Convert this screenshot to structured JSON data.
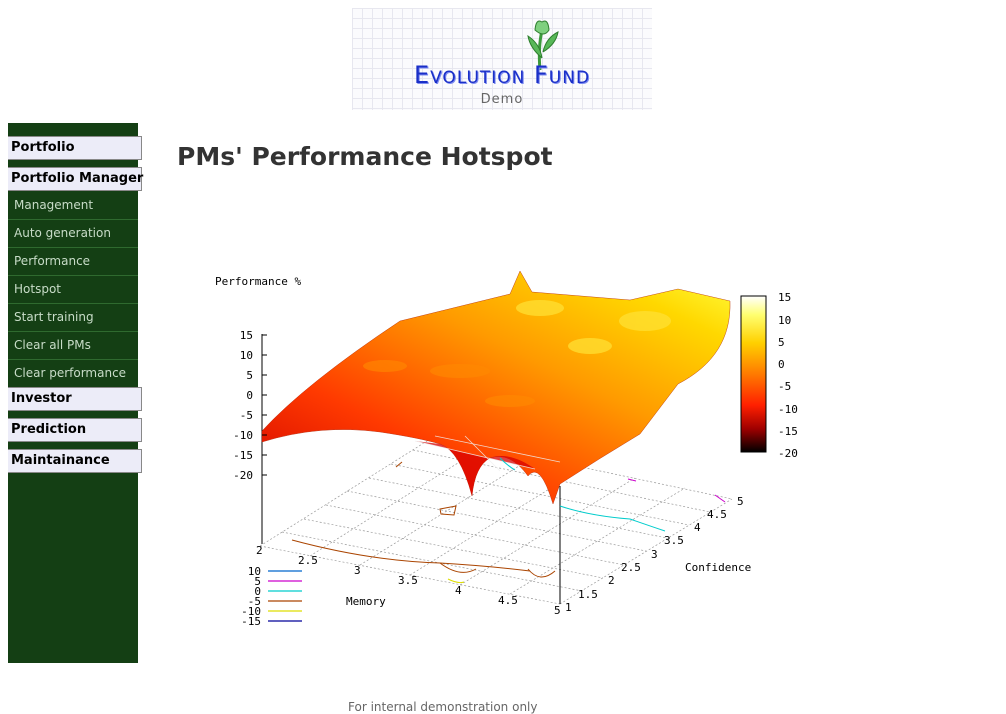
{
  "logo": {
    "title": "Evolution Fund",
    "subtitle": "Demo"
  },
  "sidebar": {
    "headers": [
      "Portfolio",
      "Portfolio Manager",
      "Investor",
      "Prediction",
      "Maintainance"
    ],
    "items": [
      "Management",
      "Auto generation",
      "Performance",
      "Hotspot",
      "Start training",
      "Clear all PMs",
      "Clear performance"
    ]
  },
  "page": {
    "title": "PMs' Performance Hotspot"
  },
  "colors": {
    "sidebar_bg": "#143f14",
    "menu_header_bg": "#ececf8",
    "surface_hot": "#ffff33",
    "surface_mid": "#ff7a00",
    "surface_cold": "#c00000"
  },
  "chart_data": {
    "type": "surface3d",
    "zlabel": "Performance %",
    "xlabel": "Memory",
    "ylabel": "Confidence",
    "x_ticks": [
      "2",
      "2.5",
      "3",
      "3.5",
      "4",
      "4.5",
      "5"
    ],
    "y_ticks": [
      "1",
      "1.5",
      "2",
      "2.5",
      "3",
      "3.5",
      "4",
      "4.5",
      "5"
    ],
    "z_ticks": [
      "15",
      "10",
      "5",
      "0",
      "-5",
      "-10",
      "-15",
      "-20"
    ],
    "xlim": [
      2,
      5
    ],
    "ylim": [
      1,
      5
    ],
    "zlim": [
      -20,
      15
    ],
    "colorbar": {
      "ticks": [
        "15",
        "10",
        "5",
        "0",
        "-5",
        "-10",
        "-15",
        "-20"
      ],
      "range": [
        -20,
        15
      ]
    },
    "contour_legend": [
      {
        "level": "10",
        "color": "#0066cc"
      },
      {
        "level": "5",
        "color": "#cc00cc"
      },
      {
        "level": "0",
        "color": "#00cccc"
      },
      {
        "level": "-5",
        "color": "#aa4400"
      },
      {
        "level": "-10",
        "color": "#dddd00"
      },
      {
        "level": "-15",
        "color": "#000099"
      }
    ]
  },
  "footer": {
    "text": "For internal demonstration only"
  }
}
